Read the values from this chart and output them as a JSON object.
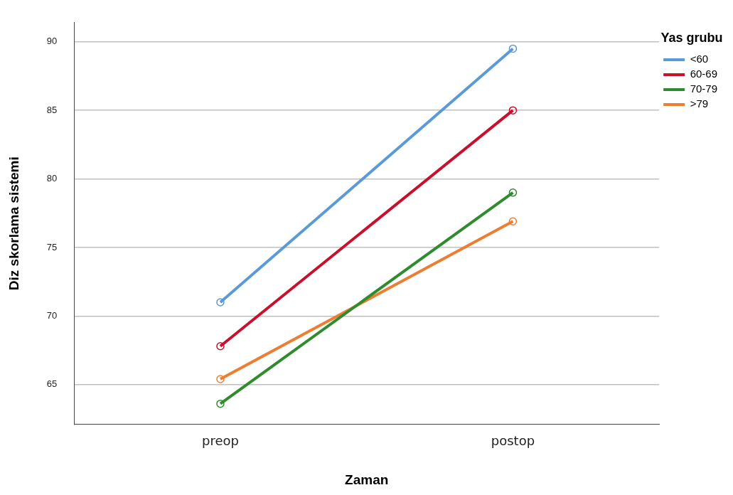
{
  "chart_data": {
    "type": "line",
    "xlabel": "Zaman",
    "ylabel": "Diz skorlama sistemi",
    "legend_title": "Yas grubu",
    "categories": [
      "preop",
      "postop"
    ],
    "series": [
      {
        "name": "<60",
        "color": "#5b9bd5",
        "values": [
          71.0,
          89.5
        ]
      },
      {
        "name": "60-69",
        "color": "#c8102e",
        "values": [
          67.8,
          85.0
        ]
      },
      {
        "name": "70-79",
        "color": "#2e8b2e",
        "values": [
          63.6,
          79.0
        ]
      },
      {
        "name": ">79",
        "color": "#ed7d31",
        "values": [
          65.4,
          76.9
        ]
      }
    ],
    "ylim": [
      62.1,
      91.4
    ],
    "yticks": [
      65,
      70,
      75,
      80,
      85,
      90
    ],
    "grid": "y",
    "legend": "top right",
    "marker": "circle",
    "line_style": "solid"
  }
}
